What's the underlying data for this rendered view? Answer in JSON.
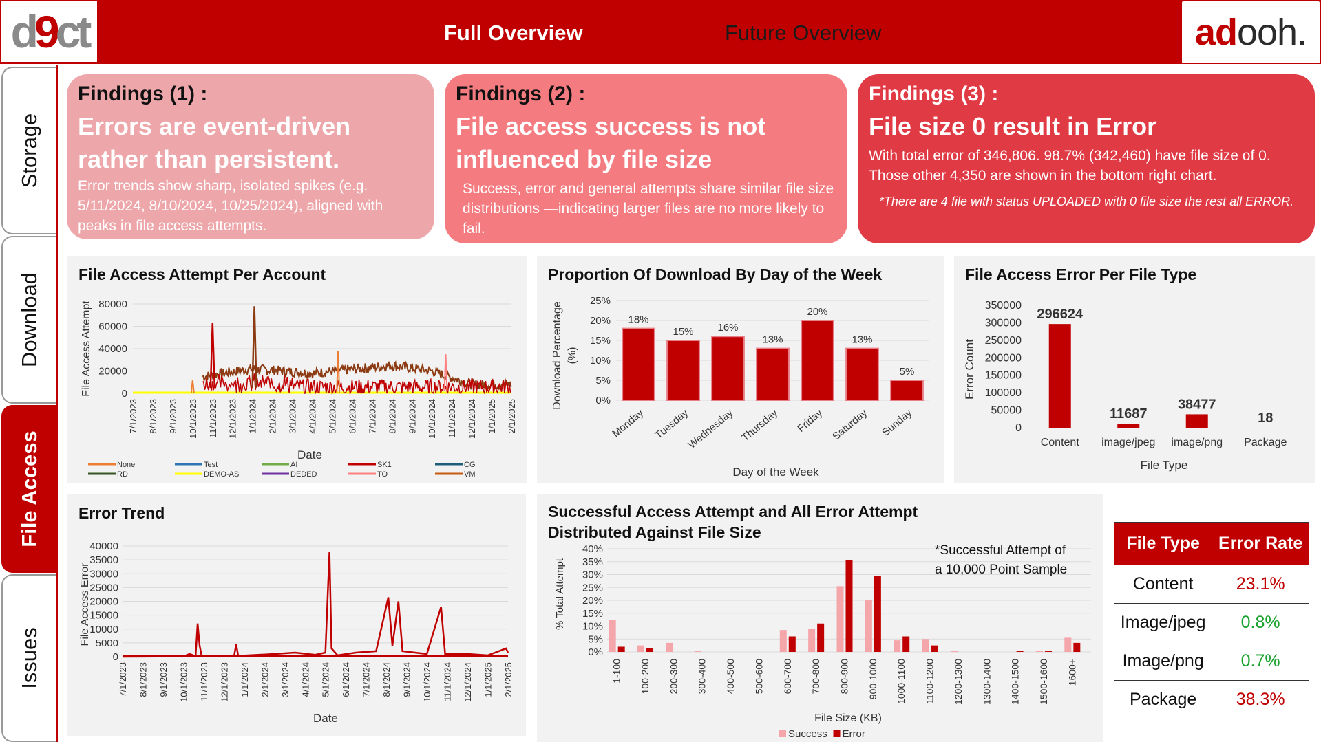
{
  "header": {
    "logo_left": {
      "pre": "d",
      "mid": "9",
      "post": "ct"
    },
    "logo_right": {
      "pre": "ad",
      "post": "ooh."
    },
    "tabs": [
      "Full Overview",
      "Future Overview"
    ]
  },
  "sidebar": {
    "tabs": [
      {
        "label": "Storage",
        "active": false
      },
      {
        "label": "Download",
        "active": false
      },
      {
        "label": "File Access",
        "active": true
      },
      {
        "label": "Issues",
        "active": false
      }
    ]
  },
  "findings": [
    {
      "heading": "Findings (1) :",
      "headline": "Errors are event-driven rather than persistent.",
      "body": "Error trends show sharp, isolated spikes (e.g. 5/11/2024, 8/10/2024, 10/25/2024), aligned with peaks in file access attempts."
    },
    {
      "heading": "Findings (2) :",
      "headline": "File access success is not influenced by file size",
      "body": "Success, error and general attempts share similar file size distributions —indicating larger files are no more likely to fail."
    },
    {
      "heading": "Findings (3) :",
      "headline": "File size 0 result in Error",
      "body": "With total error of 346,806. 98.7% (342,460) have file size of 0. Those other 4,350 are shown in the bottom right chart.",
      "note": "*There are 4 file with status UPLOADED with 0 file size the rest all ERROR."
    }
  ],
  "colors": {
    "brand_red": "#c00000",
    "light_pink": "#eda7aa",
    "mid_pink": "#f47c80",
    "bright_red": "#e03a44",
    "green": "#1aa22e"
  },
  "chart_data": [
    {
      "type": "line",
      "title": "File Access Attempt Per Account",
      "xlabel": "Date",
      "ylabel": "File Access Attempt",
      "ylim": [
        0,
        80000
      ],
      "y_ticks": [
        "80000",
        "60000",
        "40000",
        "20000",
        "0"
      ],
      "x_ticks": [
        "7/1/2023",
        "8/1/2023",
        "9/1/2023",
        "10/1/2023",
        "11/1/2023",
        "12/1/2023",
        "1/1/2024",
        "2/1/2024",
        "3/1/2024",
        "4/1/2024",
        "5/1/2024",
        "6/1/2024",
        "7/1/2024",
        "8/1/2024",
        "9/1/2024",
        "10/1/2024",
        "11/1/2024",
        "12/1/2024",
        "1/1/2025",
        "2/1/2025"
      ],
      "legend": [
        {
          "name": "None",
          "color": "#ed7d31"
        },
        {
          "name": "Test",
          "color": "#2e75b6"
        },
        {
          "name": "AI",
          "color": "#70ad47"
        },
        {
          "name": "SK1",
          "color": "#c00000"
        },
        {
          "name": "CG",
          "color": "#1f5e7a"
        },
        {
          "name": "RD",
          "color": "#375623"
        },
        {
          "name": "DEMO-AS",
          "color": "#ffff00"
        },
        {
          "name": "DEDED",
          "color": "#7030a0"
        },
        {
          "name": "TO",
          "color": "#ff8080"
        },
        {
          "name": "VM",
          "color": "#c55a11"
        }
      ],
      "series_approx": {
        "SK1_peaks": [
          [
            4.0,
            63000
          ],
          [
            6.1,
            78000
          ]
        ],
        "VM_baseline": [
          [
            3.5,
            15000
          ],
          [
            6.0,
            22000
          ],
          [
            9.0,
            18000
          ],
          [
            13.0,
            25000
          ],
          [
            15.0,
            20000
          ],
          [
            17.0,
            8000
          ],
          [
            19.0,
            8000
          ]
        ],
        "None_peaks": [
          [
            3.0,
            12000
          ],
          [
            10.3,
            38000
          ]
        ],
        "TO_peaks": [
          [
            15.7,
            35000
          ]
        ]
      }
    },
    {
      "type": "bar",
      "title": "Proportion Of Download By Day of the Week",
      "xlabel": "Day of the Week",
      "ylabel": "Download Percentage (%)",
      "ylim": [
        0,
        25
      ],
      "y_ticks": [
        "25%",
        "20%",
        "15%",
        "10%",
        "5%",
        "0%"
      ],
      "categories": [
        "Monday",
        "Tuesday",
        "Wednesday",
        "Thursday",
        "Friday",
        "Saturday",
        "Sunday"
      ],
      "values": [
        18,
        15,
        16,
        13,
        20,
        13,
        5
      ],
      "labels": [
        "18%",
        "15%",
        "16%",
        "13%",
        "20%",
        "13%",
        "5%"
      ]
    },
    {
      "type": "bar",
      "title": "File Access Error Per File Type",
      "xlabel": "File Type",
      "ylabel": "Error Count",
      "ylim": [
        0,
        350000
      ],
      "y_ticks": [
        "350000",
        "300000",
        "250000",
        "200000",
        "150000",
        "100000",
        "50000",
        "0"
      ],
      "categories": [
        "Content",
        "image/jpeg",
        "image/png",
        "Package"
      ],
      "values": [
        296624,
        11687,
        38477,
        18
      ],
      "labels": [
        "296624",
        "11687",
        "38477",
        "18"
      ]
    },
    {
      "type": "line",
      "title": "Error Trend",
      "xlabel": "Date",
      "ylabel": "File Access Error",
      "ylim": [
        0,
        40000
      ],
      "y_ticks": [
        "40000",
        "35000",
        "30000",
        "25000",
        "20000",
        "15000",
        "10000",
        "5000",
        "0"
      ],
      "x_ticks": [
        "7/1/2023",
        "8/1/2023",
        "9/1/2023",
        "10/1/2023",
        "11/1/2023",
        "12/1/2023",
        "1/1/2024",
        "2/1/2024",
        "3/1/2024",
        "4/1/2024",
        "5/1/2024",
        "6/1/2024",
        "7/1/2024",
        "8/1/2024",
        "9/1/2024",
        "10/1/2024",
        "11/1/2024",
        "12/1/2024",
        "1/1/2025",
        "2/1/2025"
      ],
      "points": [
        [
          0,
          0
        ],
        [
          3.0,
          100
        ],
        [
          3.3,
          1000
        ],
        [
          3.6,
          200
        ],
        [
          3.7,
          12000
        ],
        [
          3.8,
          4000
        ],
        [
          3.9,
          300
        ],
        [
          5.5,
          200
        ],
        [
          5.6,
          4500
        ],
        [
          5.7,
          300
        ],
        [
          7.5,
          1000
        ],
        [
          8.5,
          1500
        ],
        [
          9.5,
          700
        ],
        [
          10.0,
          1500
        ],
        [
          10.2,
          38000
        ],
        [
          10.3,
          3000
        ],
        [
          10.6,
          500
        ],
        [
          11.5,
          1500
        ],
        [
          12.5,
          2000
        ],
        [
          13.1,
          21500
        ],
        [
          13.3,
          4000
        ],
        [
          13.6,
          20000
        ],
        [
          13.8,
          2000
        ],
        [
          15.0,
          1000
        ],
        [
          15.7,
          18000
        ],
        [
          15.9,
          1000
        ],
        [
          17.0,
          1000
        ],
        [
          18.0,
          500
        ],
        [
          18.9,
          3000
        ],
        [
          19.0,
          1500
        ]
      ],
      "line_color": "#c00000"
    },
    {
      "type": "bar",
      "title": "Successful Access Attempt and All Error Attempt Distributed Against File Size",
      "annotation": "*Successful Attempt of a 10,000 Point Sample",
      "xlabel": "File Size (KB)",
      "ylabel": "% Total Attempt",
      "ylim": [
        0,
        40
      ],
      "y_ticks": [
        "40%",
        "35%",
        "30%",
        "25%",
        "20%",
        "15%",
        "10%",
        "5%",
        "0%"
      ],
      "categories": [
        "1-100",
        "100-200",
        "200-300",
        "300-400",
        "400-500",
        "500-600",
        "600-700",
        "700-800",
        "800-900",
        "900-1000",
        "1000-1100",
        "1100-1200",
        "1200-1300",
        "1300-1400",
        "1400-1500",
        "1500-1600",
        "1600+"
      ],
      "series": [
        {
          "name": "Success",
          "color": "#f4a6ab",
          "values": [
            12.5,
            2.5,
            3.5,
            0.5,
            0,
            0,
            8.5,
            9,
            25.5,
            20,
            4.5,
            5,
            0.5,
            0,
            0,
            0.5,
            5.5
          ]
        },
        {
          "name": "Error",
          "color": "#c00000",
          "values": [
            2,
            1.5,
            0,
            0,
            0,
            0,
            6,
            11,
            35.5,
            29.5,
            6,
            2.5,
            0,
            0,
            0.5,
            0.5,
            3.5
          ]
        }
      ]
    },
    {
      "type": "table",
      "headers": [
        "File Type",
        "Error Rate"
      ],
      "rows": [
        {
          "type": "Content",
          "rate": "23.1%",
          "status": "red"
        },
        {
          "type": "Image/jpeg",
          "rate": "0.8%",
          "status": "green"
        },
        {
          "type": "Image/png",
          "rate": "0.7%",
          "status": "green"
        },
        {
          "type": "Package",
          "rate": "38.3%",
          "status": "red"
        }
      ]
    }
  ]
}
